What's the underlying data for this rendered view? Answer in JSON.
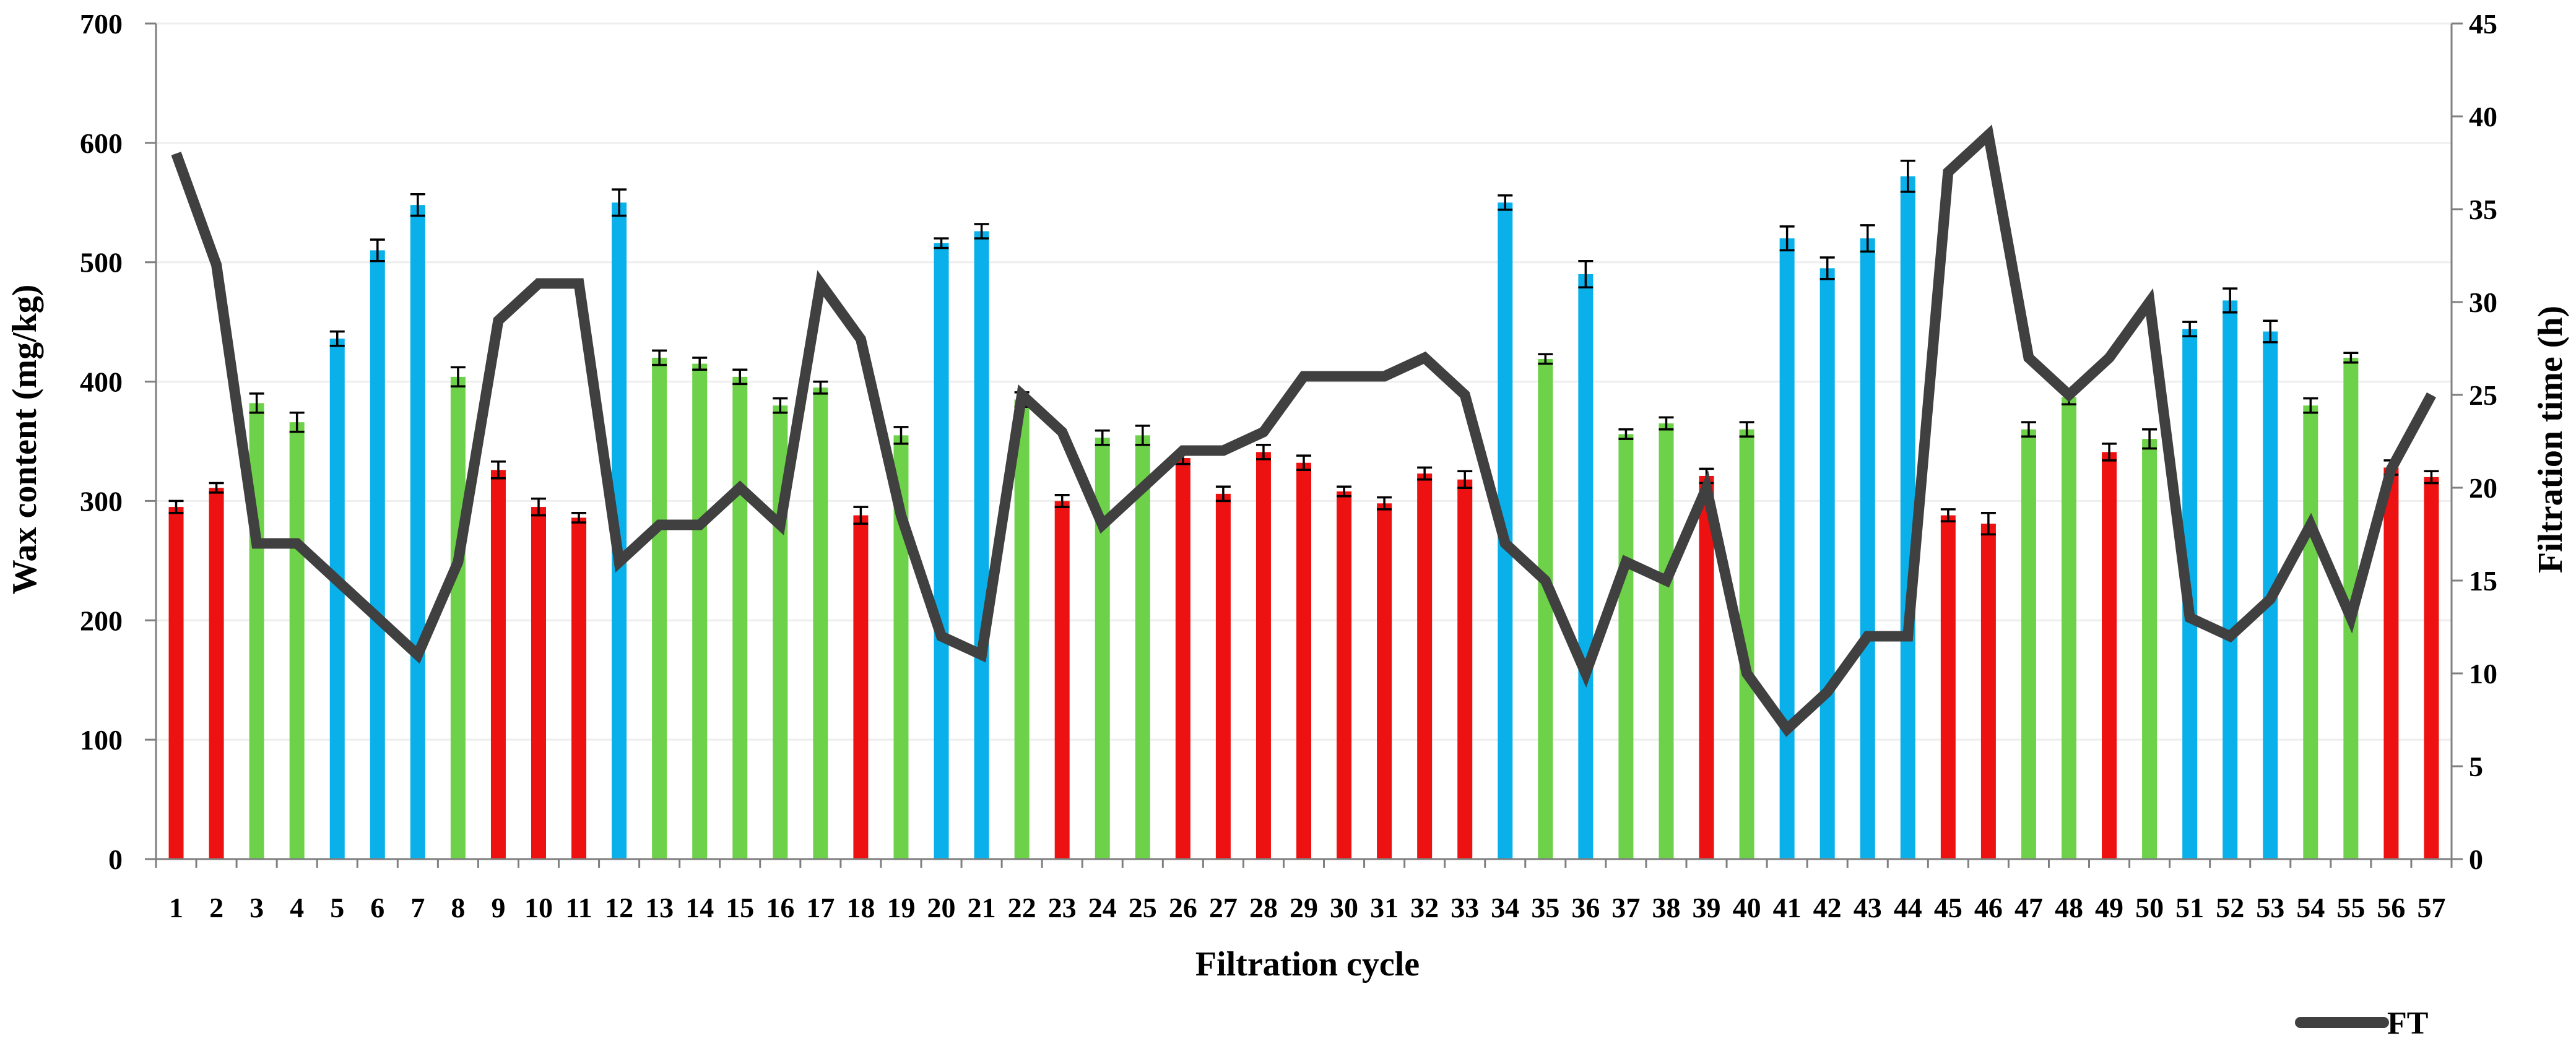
{
  "chart_data": {
    "type": "bar",
    "xlabel": "Filtration cycle",
    "ylabel": "Wax content (mg/kg)",
    "y2label": "Filtration time (h)",
    "ylim": [
      0,
      700
    ],
    "y_ticks": [
      "0",
      "100",
      "200",
      "300",
      "400",
      "500",
      "600",
      "700"
    ],
    "y2lim": [
      0,
      45
    ],
    "y2_ticks": [
      "0",
      "5",
      "10",
      "15",
      "20",
      "25",
      "30",
      "35",
      "40",
      "45"
    ],
    "grid": true,
    "categories": [
      "1",
      "2",
      "3",
      "4",
      "5",
      "6",
      "7",
      "8",
      "9",
      "10",
      "11",
      "12",
      "13",
      "14",
      "15",
      "16",
      "17",
      "18",
      "19",
      "20",
      "21",
      "22",
      "23",
      "24",
      "25",
      "26",
      "27",
      "28",
      "29",
      "30",
      "31",
      "32",
      "33",
      "34",
      "35",
      "36",
      "37",
      "38",
      "39",
      "40",
      "41",
      "42",
      "43",
      "44",
      "45",
      "46",
      "47",
      "48",
      "49",
      "50",
      "51",
      "52",
      "53",
      "54",
      "55",
      "56",
      "57"
    ],
    "series": [
      {
        "name": "Wax content",
        "axis": "left",
        "kind": "bar",
        "values": [
          295,
          311,
          382,
          366,
          436,
          510,
          548,
          404,
          326,
          295,
          286,
          550,
          420,
          415,
          404,
          380,
          395,
          288,
          355,
          516,
          526,
          385,
          300,
          353,
          355,
          336,
          306,
          341,
          332,
          308,
          298,
          323,
          318,
          550,
          419,
          490,
          356,
          365,
          321,
          360,
          520,
          495,
          520,
          572,
          288,
          281,
          360,
          387,
          341,
          352,
          444,
          468,
          442,
          380,
          420,
          328,
          320
        ],
        "errors": [
          5,
          4,
          8,
          8,
          6,
          9,
          9,
          8,
          7,
          7,
          4,
          11,
          6,
          5,
          6,
          6,
          5,
          7,
          7,
          4,
          6,
          6,
          5,
          6,
          8,
          5,
          6,
          6,
          6,
          4,
          5,
          5,
          7,
          6,
          4,
          11,
          4,
          5,
          6,
          6,
          10,
          9,
          11,
          13,
          5,
          9,
          6,
          6,
          7,
          8,
          6,
          10,
          9,
          6,
          4,
          6,
          5
        ],
        "groups": [
          "low",
          "low",
          "mid",
          "mid",
          "high",
          "high",
          "high",
          "mid",
          "low",
          "low",
          "low",
          "high",
          "mid",
          "mid",
          "mid",
          "mid",
          "mid",
          "low",
          "mid",
          "high",
          "high",
          "mid",
          "low",
          "mid",
          "mid",
          "low",
          "low",
          "low",
          "low",
          "low",
          "low",
          "low",
          "low",
          "high",
          "mid",
          "high",
          "mid",
          "mid",
          "low",
          "mid",
          "high",
          "high",
          "high",
          "high",
          "low",
          "low",
          "mid",
          "mid",
          "low",
          "mid",
          "high",
          "high",
          "high",
          "mid",
          "mid",
          "low",
          "low"
        ]
      },
      {
        "name": "FT",
        "axis": "right",
        "kind": "line",
        "values": [
          38,
          32,
          17,
          17,
          15,
          13,
          11,
          16,
          29,
          31,
          31,
          16,
          18,
          18,
          20,
          18,
          31,
          28,
          18.5,
          12,
          11,
          25,
          23,
          18,
          20,
          22,
          22,
          23,
          26,
          26,
          26,
          27,
          25,
          17,
          15,
          10,
          16,
          15,
          20,
          10,
          7,
          9,
          12,
          12,
          37,
          39,
          27,
          25,
          27,
          30,
          13,
          12,
          14,
          18,
          13,
          21,
          25
        ]
      }
    ],
    "legend": {
      "position": "bottom-right",
      "entries": [
        "FT"
      ]
    },
    "colors": {
      "low": "#ee1111",
      "mid": "#6ed14a",
      "high": "#0ab0ea",
      "line": "#404040",
      "axis": "#7f7f7f",
      "grid": "#eeeeee",
      "errorbar": "#000000"
    }
  }
}
